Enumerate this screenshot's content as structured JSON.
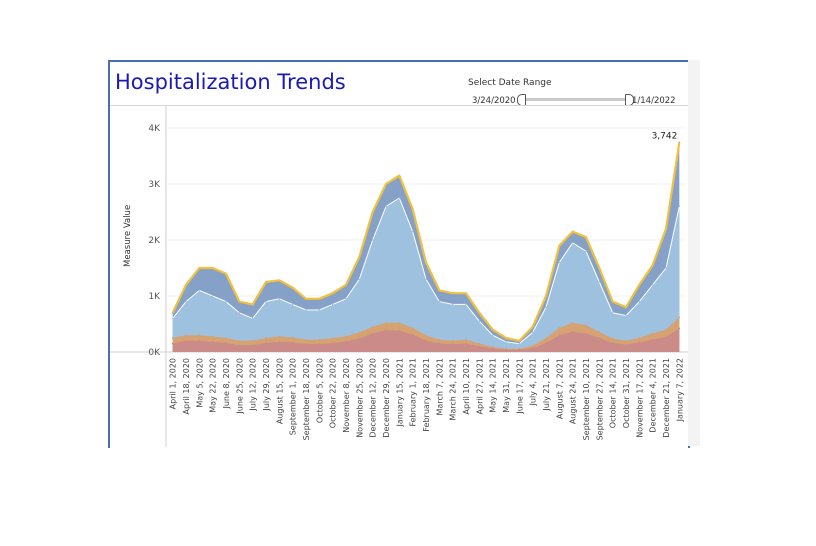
{
  "header": {
    "title": "Hospitalization Trends",
    "range_label": "Select Date Range",
    "range_start": "3/24/2020",
    "range_end": "1/14/2022"
  },
  "colors": {
    "title": "#1a1ab8",
    "total_line": "#f0c040",
    "series_top": "#7f9cc4",
    "series_mid": "#9fc3e0",
    "series_orange": "#d9a06a",
    "series_bottom": "#c98a8a"
  },
  "chart_data": {
    "type": "area",
    "ylabel": "Measure Value",
    "ylim": [
      0,
      4000
    ],
    "y_ticks": [
      "0K",
      "1K",
      "2K",
      "3K",
      "4K"
    ],
    "grid": true,
    "x_tick_labels": [
      "April 1, 2020",
      "April 18, 2020",
      "May 5, 2020",
      "May 22, 2020",
      "June 8, 2020",
      "June 25, 2020",
      "July 12, 2020",
      "July 29, 2020",
      "August 15, 2020",
      "September 1, 2020",
      "September 18, 2020",
      "October 5, 2020",
      "October 22, 2020",
      "November 8, 2020",
      "November 25, 2020",
      "December 12, 2020",
      "December 29, 2020",
      "January 15, 2021",
      "February 1, 2021",
      "February 18, 2021",
      "March 7, 2021",
      "March 24, 2021",
      "April 10, 2021",
      "April 27, 2021",
      "May 14, 2021",
      "May 31, 2021",
      "June 17, 2021",
      "July 4, 2021",
      "July 21, 2021",
      "August 7, 2021",
      "August 24, 2021",
      "September 10, 2021",
      "September 27, 2021",
      "October 14, 2021",
      "October 31, 2021",
      "November 17, 2021",
      "December 4, 2021",
      "December 21, 2021",
      "January 7, 2022"
    ],
    "series": [
      {
        "values": [
          700,
          1200,
          1500,
          1500,
          1400,
          900,
          850,
          1250,
          1280,
          1150,
          950,
          950,
          1050,
          1200,
          1700,
          2500,
          3000,
          3150,
          2550,
          1600,
          1100,
          1050,
          1050,
          700,
          400,
          250,
          200,
          450,
          1000,
          1900,
          2150,
          2050,
          1500,
          900,
          800,
          1200,
          1550,
          2200,
          3742
        ]
      },
      {
        "values": [
          600,
          900,
          1100,
          1000,
          900,
          700,
          600,
          900,
          950,
          850,
          750,
          750,
          850,
          950,
          1300,
          2000,
          2600,
          2750,
          2150,
          1300,
          900,
          850,
          850,
          550,
          300,
          180,
          150,
          350,
          800,
          1600,
          1950,
          1800,
          1250,
          700,
          650,
          900,
          1200,
          1500,
          2600
        ]
      },
      {
        "values": [
          250,
          300,
          300,
          280,
          250,
          200,
          200,
          250,
          280,
          260,
          220,
          220,
          250,
          280,
          350,
          450,
          520,
          520,
          430,
          300,
          220,
          200,
          220,
          150,
          90,
          60,
          60,
          110,
          250,
          430,
          520,
          480,
          360,
          240,
          200,
          250,
          330,
          400,
          620
        ]
      },
      {
        "values": [
          150,
          200,
          200,
          180,
          160,
          120,
          120,
          160,
          180,
          170,
          140,
          140,
          160,
          190,
          240,
          330,
          390,
          380,
          310,
          200,
          150,
          140,
          150,
          100,
          60,
          40,
          40,
          70,
          160,
          300,
          360,
          330,
          250,
          160,
          130,
          170,
          220,
          270,
          420
        ]
      }
    ],
    "annotations": [
      {
        "text": "3,742"
      }
    ]
  }
}
